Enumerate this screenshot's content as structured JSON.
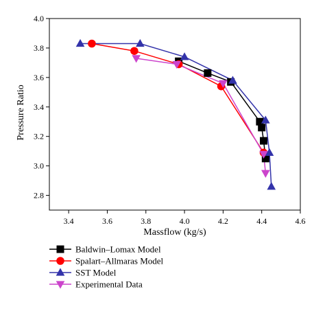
{
  "chart_data": {
    "type": "line",
    "title": "",
    "xlabel": "Massflow (kg/s)",
    "ylabel": "Pressure Ratio",
    "xlim": [
      3.3,
      4.6
    ],
    "ylim": [
      2.7,
      4.0
    ],
    "xticks": [
      3.4,
      3.6,
      3.8,
      4.0,
      4.2,
      4.4,
      4.6
    ],
    "yticks": [
      2.8,
      3.0,
      3.2,
      3.4,
      3.6,
      3.8,
      4.0
    ],
    "grid": false,
    "legend_position": "below plot",
    "series": [
      {
        "name": "Baldwin–Lomax Model",
        "marker": "square",
        "color": "#000000",
        "x": [
          3.97,
          4.12,
          4.24,
          4.39,
          4.4,
          4.41,
          4.42
        ],
        "y": [
          3.71,
          3.63,
          3.57,
          3.3,
          3.26,
          3.17,
          3.05
        ]
      },
      {
        "name": "Spalart–Allmaras Model",
        "marker": "circle",
        "color": "#ff0000",
        "x": [
          3.52,
          3.74,
          3.97,
          4.19,
          4.41
        ],
        "y": [
          3.83,
          3.78,
          3.69,
          3.54,
          3.09
        ]
      },
      {
        "name": "SST Model",
        "marker": "triangle-up",
        "color": "#3333aa",
        "x": [
          3.46,
          3.77,
          4.0,
          4.25,
          4.42,
          4.44,
          4.45
        ],
        "y": [
          3.83,
          3.83,
          3.74,
          3.58,
          3.31,
          3.09,
          2.86
        ]
      },
      {
        "name": "Experimental Data",
        "marker": "triangle-down",
        "color": "#cc44cc",
        "x": [
          3.75,
          3.96,
          4.2,
          4.41,
          4.42
        ],
        "y": [
          3.73,
          3.69,
          3.56,
          3.08,
          2.95
        ]
      }
    ]
  }
}
